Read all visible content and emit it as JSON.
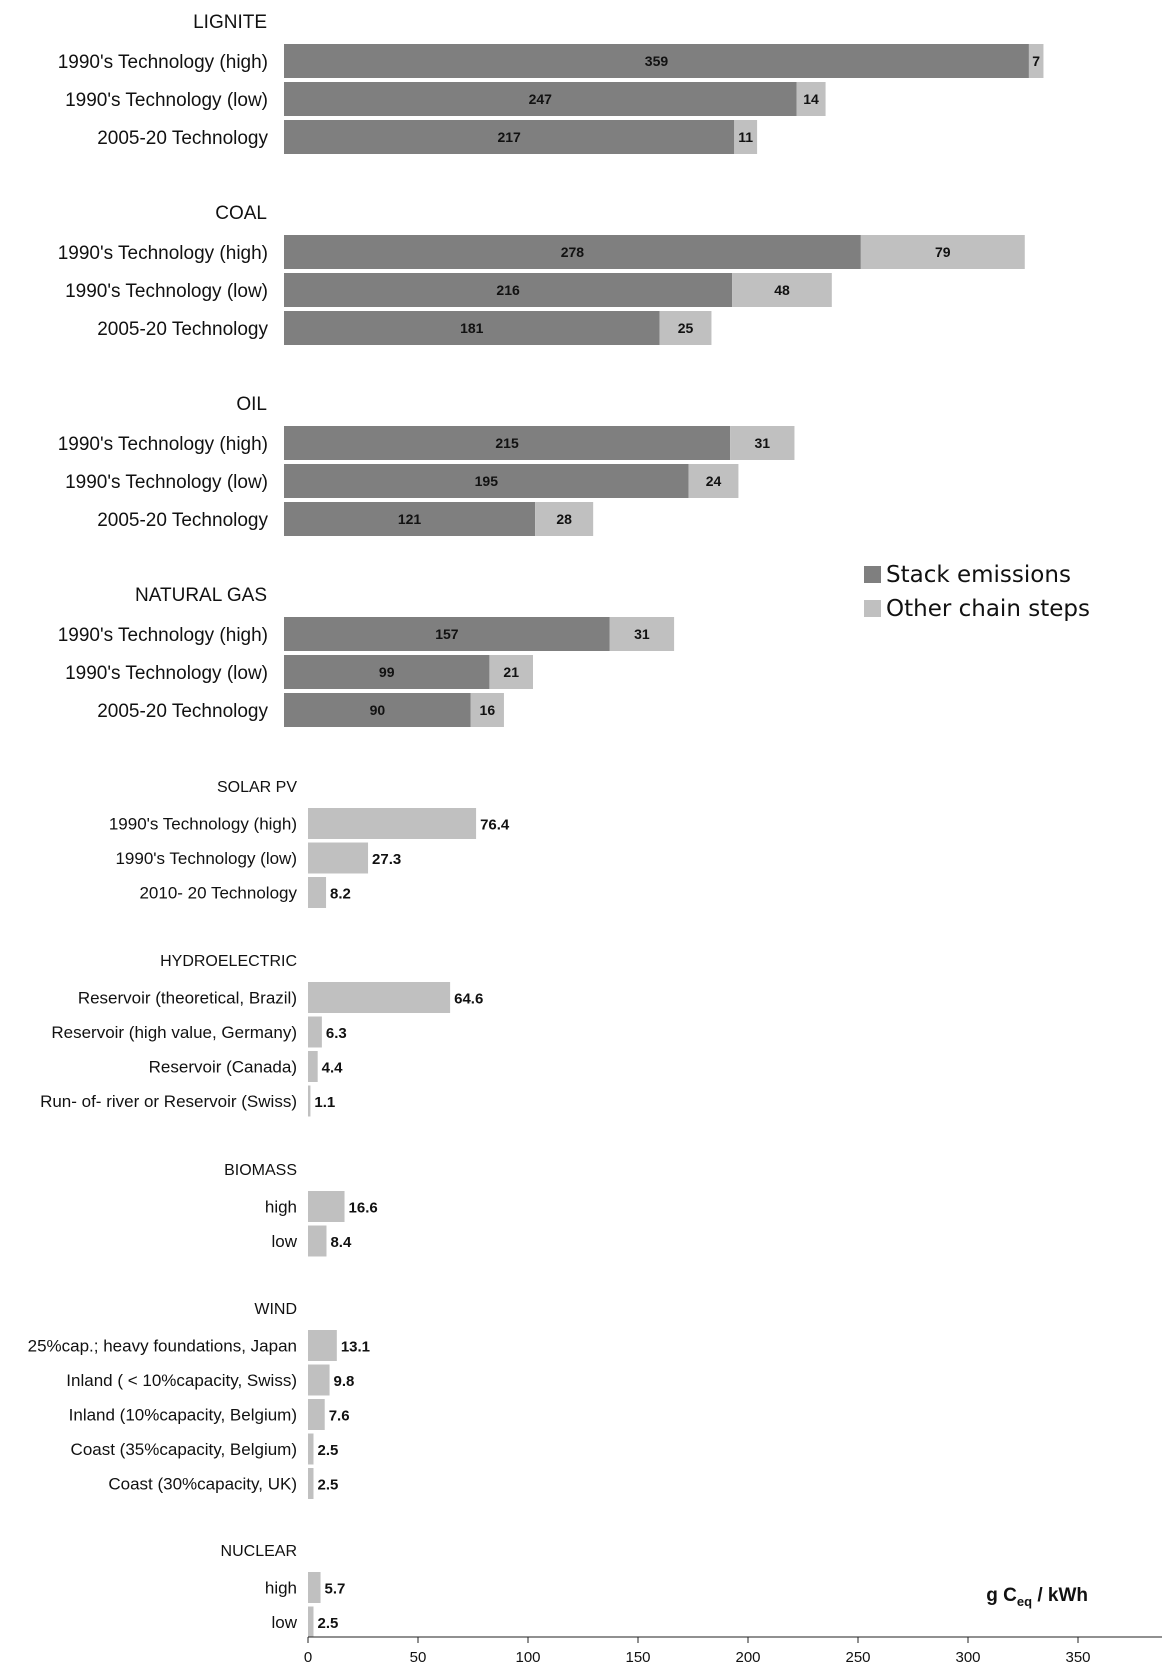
{
  "chart_data": [
    {
      "type": "bar",
      "orientation": "horizontal",
      "stacked": true,
      "legend": {
        "placement": "right",
        "entries": [
          {
            "label": "Stack emissions",
            "color": "#7f7f7f"
          },
          {
            "label": "Other chain steps",
            "color": "#c0c0c0"
          }
        ]
      },
      "groups": [
        {
          "title": "LIGNITE",
          "categories": [
            "1990's Technology (high)",
            "1990's Technology (low)",
            "2005-20 Technology"
          ],
          "series": [
            {
              "name": "Stack emissions",
              "values": [
                359,
                247,
                217
              ]
            },
            {
              "name": "Other chain steps",
              "values": [
                7,
                14,
                11
              ]
            }
          ]
        },
        {
          "title": "COAL",
          "categories": [
            "1990's Technology (high)",
            "1990's Technology (low)",
            "2005-20 Technology"
          ],
          "series": [
            {
              "name": "Stack emissions",
              "values": [
                278,
                216,
                181
              ]
            },
            {
              "name": "Other chain steps",
              "values": [
                79,
                48,
                25
              ]
            }
          ]
        },
        {
          "title": "OIL",
          "categories": [
            "1990's Technology (high)",
            "1990's Technology (low)",
            "2005-20 Technology"
          ],
          "series": [
            {
              "name": "Stack emissions",
              "values": [
                215,
                195,
                121
              ]
            },
            {
              "name": "Other chain steps",
              "values": [
                31,
                24,
                28
              ]
            }
          ]
        },
        {
          "title": "NATURAL GAS",
          "categories": [
            "1990's Technology (high)",
            "1990's Technology (low)",
            "2005-20 Technology"
          ],
          "series": [
            {
              "name": "Stack emissions",
              "values": [
                157,
                99,
                90
              ]
            },
            {
              "name": "Other chain steps",
              "values": [
                31,
                21,
                16
              ]
            }
          ]
        }
      ]
    },
    {
      "type": "bar",
      "orientation": "horizontal",
      "xlabel": "g Ceq / kWh",
      "xlim": [
        0,
        390
      ],
      "xticks": [
        0,
        50,
        100,
        150,
        200,
        250,
        300,
        350
      ],
      "color": "#c0c0c0",
      "groups": [
        {
          "title": "SOLAR PV",
          "categories": [
            "1990's Technology (high)",
            "1990's Technology (low)",
            "2010- 20 Technology"
          ],
          "values": [
            76.4,
            27.3,
            8.2
          ]
        },
        {
          "title": "HYDROELECTRIC",
          "categories": [
            "Reservoir (theoretical, Brazil)",
            "Reservoir (high value, Germany)",
            "Reservoir (Canada)",
            "Run- of- river or Reservoir (Swiss)"
          ],
          "values": [
            64.6,
            6.3,
            4.4,
            1.1
          ]
        },
        {
          "title": "BIOMASS",
          "categories": [
            "high",
            "low"
          ],
          "values": [
            16.6,
            8.4
          ]
        },
        {
          "title": "WIND",
          "categories": [
            "25%cap.; heavy foundations, Japan",
            "Inland ( < 10%capacity, Swiss)",
            "Inland (10%capacity, Belgium)",
            "Coast (35%capacity, Belgium)",
            "Coast (30%capacity, UK)"
          ],
          "values": [
            13.1,
            9.8,
            7.6,
            2.5,
            2.5
          ]
        },
        {
          "title": "NUCLEAR",
          "categories": [
            "high",
            "low"
          ],
          "values": [
            5.7,
            2.5
          ]
        }
      ]
    }
  ]
}
